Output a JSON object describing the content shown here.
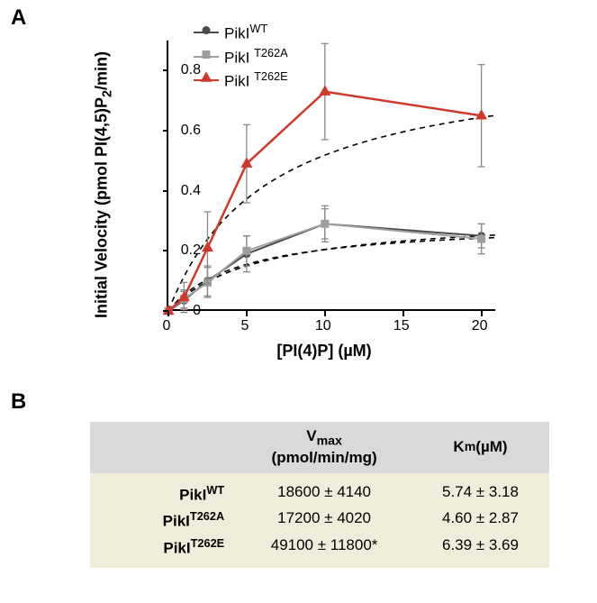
{
  "panelA": {
    "label": "A"
  },
  "panelB": {
    "label": "B"
  },
  "chart": {
    "type": "line-scatter",
    "x_label": "[PI(4)P] (µM)",
    "y_label": "Initial Velocity (pmol PI(4,5)P₂/min)",
    "xlim": [
      0,
      21
    ],
    "ylim": [
      0,
      0.9
    ],
    "xticks": [
      0,
      5,
      10,
      15,
      20
    ],
    "yticks": [
      0,
      0.2,
      0.4,
      0.6,
      0.8
    ],
    "background_color": "#ffffff",
    "axis_color": "#000000",
    "tick_fontsize": 16,
    "label_fontsize": 18,
    "label_fontweight": "bold",
    "series": [
      {
        "name": "PikI_WT",
        "label_html": "PikI<sup>WT</sup>",
        "color": "#4a4a4a",
        "marker": "circle",
        "marker_size": 8,
        "line_width": 2,
        "x": [
          0,
          1,
          2.5,
          5,
          10,
          20
        ],
        "y": [
          0,
          0.035,
          0.1,
          0.19,
          0.29,
          0.25
        ],
        "yerr": [
          0,
          0.03,
          0.05,
          0.06,
          0.06,
          0.04
        ]
      },
      {
        "name": "PikI_T262A",
        "label_html": "PikI <sup>T262A</sup>",
        "color": "#9e9e9e",
        "marker": "square",
        "marker_size": 8,
        "line_width": 2,
        "x": [
          0,
          1,
          2.5,
          5,
          10,
          20
        ],
        "y": [
          0,
          0.04,
          0.095,
          0.2,
          0.29,
          0.24
        ],
        "yerr": [
          0,
          0.03,
          0.05,
          0.05,
          0.05,
          0.05
        ]
      },
      {
        "name": "PikI_T262E",
        "label_html": "PikI <sup>T262E</sup>",
        "color": "#d0392a",
        "marker": "triangle",
        "marker_size": 9,
        "line_width": 2.5,
        "x": [
          0,
          1,
          2.5,
          5,
          10,
          20
        ],
        "y": [
          0,
          0.045,
          0.21,
          0.49,
          0.73,
          0.65
        ],
        "yerr": [
          0,
          0.05,
          0.12,
          0.13,
          0.16,
          0.17
        ]
      }
    ],
    "fit_curves": {
      "color": "#000000",
      "dash": "6,5",
      "line_width": 1.6,
      "curves": [
        {
          "Vmax": 0.322,
          "Km": 5.74
        },
        {
          "Vmax": 0.298,
          "Km": 4.6
        },
        {
          "Vmax": 0.85,
          "Km": 6.39
        }
      ]
    }
  },
  "table": {
    "header_bg": "#d9d9d9",
    "body_bg": "#efedd9",
    "columns": [
      "",
      "V<sub>max</sub><br>(pmol/min/mg)",
      "K<sub>m</sub> (µM)"
    ],
    "rows": [
      {
        "name_html": "PikI<sup>WT</sup>",
        "vmax": "18600 ± 4140",
        "km": "5.74 ± 3.18"
      },
      {
        "name_html": "PikI<sup>T262A</sup>",
        "vmax": "17200 ± 4020",
        "km": "4.60 ± 2.87"
      },
      {
        "name_html": "PikI<sup>T262E</sup>",
        "vmax": "49100 ± 11800*",
        "km": "6.39 ± 3.69"
      }
    ]
  }
}
